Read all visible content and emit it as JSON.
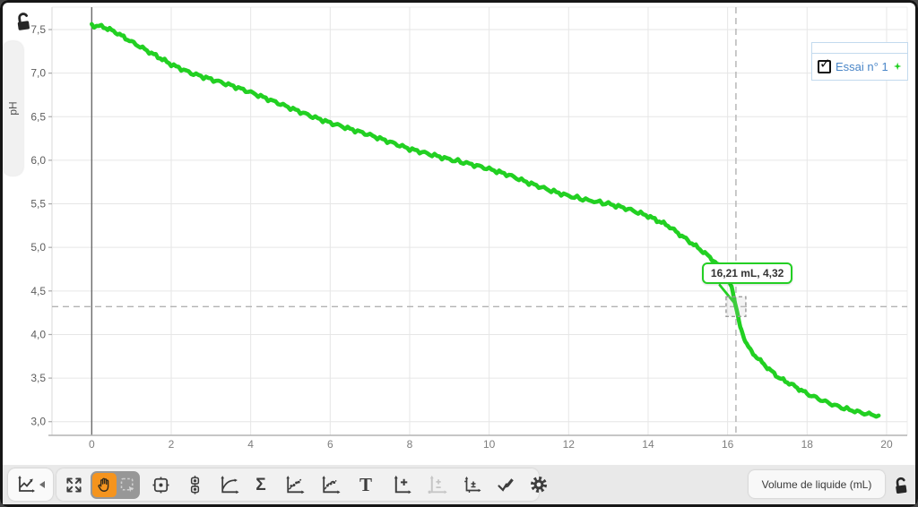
{
  "window": {
    "app": "graph-analysis"
  },
  "y_axis": {
    "label": "pH"
  },
  "x_axis": {
    "label": "Volume de liquide (mL)"
  },
  "legend": {
    "checkbox_glyph": "✓",
    "series": [
      {
        "label": "Essai n° 1",
        "checked": true,
        "color": "#22d022"
      }
    ]
  },
  "toolbar": {
    "statistics_glyph": "Σ",
    "text_glyph": "T"
  },
  "chart_data": {
    "type": "line",
    "title": "",
    "xlabel": "Volume de liquide (mL)",
    "ylabel": "pH",
    "xlim": [
      -1,
      20.52
    ],
    "ylim": [
      2.843,
      7.757
    ],
    "grid": true,
    "x_ticks": {
      "values": [
        0,
        2,
        4,
        6,
        8,
        10,
        12,
        14,
        16,
        18,
        20
      ],
      "labels": [
        "0",
        "2",
        "4",
        "6",
        "8",
        "10",
        "12",
        "14",
        "16",
        "18",
        "20"
      ]
    },
    "y_ticks": {
      "values": [
        3.0,
        3.5,
        4.0,
        4.5,
        5.0,
        5.5,
        6.0,
        6.5,
        7.0,
        7.5
      ],
      "labels": [
        "3,0",
        "3,5",
        "4,0",
        "4,5",
        "5,0",
        "5,5",
        "6,0",
        "6,5",
        "7,0",
        "7,5"
      ]
    },
    "legend_position": "top-right",
    "series": [
      {
        "name": "Essai n° 1",
        "color": "#22d022",
        "points": [
          [
            0,
            7.55
          ],
          [
            0.3,
            7.53
          ],
          [
            0.6,
            7.47
          ],
          [
            1,
            7.36
          ],
          [
            1.5,
            7.23
          ],
          [
            2,
            7.1
          ],
          [
            2.5,
            7.0
          ],
          [
            3,
            6.93
          ],
          [
            3.5,
            6.86
          ],
          [
            4,
            6.78
          ],
          [
            4.5,
            6.69
          ],
          [
            5,
            6.6
          ],
          [
            5.5,
            6.51
          ],
          [
            6,
            6.43
          ],
          [
            6.5,
            6.36
          ],
          [
            7,
            6.29
          ],
          [
            7.5,
            6.21
          ],
          [
            8,
            6.13
          ],
          [
            8.5,
            6.07
          ],
          [
            9,
            6.01
          ],
          [
            9.5,
            5.96
          ],
          [
            10,
            5.9
          ],
          [
            10.5,
            5.83
          ],
          [
            11,
            5.74
          ],
          [
            11.5,
            5.66
          ],
          [
            12,
            5.59
          ],
          [
            12.5,
            5.54
          ],
          [
            13,
            5.5
          ],
          [
            13.5,
            5.44
          ],
          [
            14,
            5.36
          ],
          [
            14.5,
            5.25
          ],
          [
            15,
            5.08
          ],
          [
            15.3,
            4.98
          ],
          [
            15.6,
            4.87
          ],
          [
            15.9,
            4.73
          ],
          [
            16.1,
            4.55
          ],
          [
            16.21,
            4.32
          ],
          [
            16.32,
            4.08
          ],
          [
            16.45,
            3.92
          ],
          [
            16.6,
            3.8
          ],
          [
            17,
            3.62
          ],
          [
            17.3,
            3.5
          ],
          [
            17.6,
            3.43
          ],
          [
            18,
            3.32
          ],
          [
            18.4,
            3.24
          ],
          [
            18.8,
            3.17
          ],
          [
            19.2,
            3.12
          ],
          [
            19.5,
            3.09
          ],
          [
            19.8,
            3.07
          ]
        ]
      }
    ],
    "examine": {
      "x": 16.21,
      "y": 4.32,
      "label": "16,21 mL, 4,32"
    }
  }
}
